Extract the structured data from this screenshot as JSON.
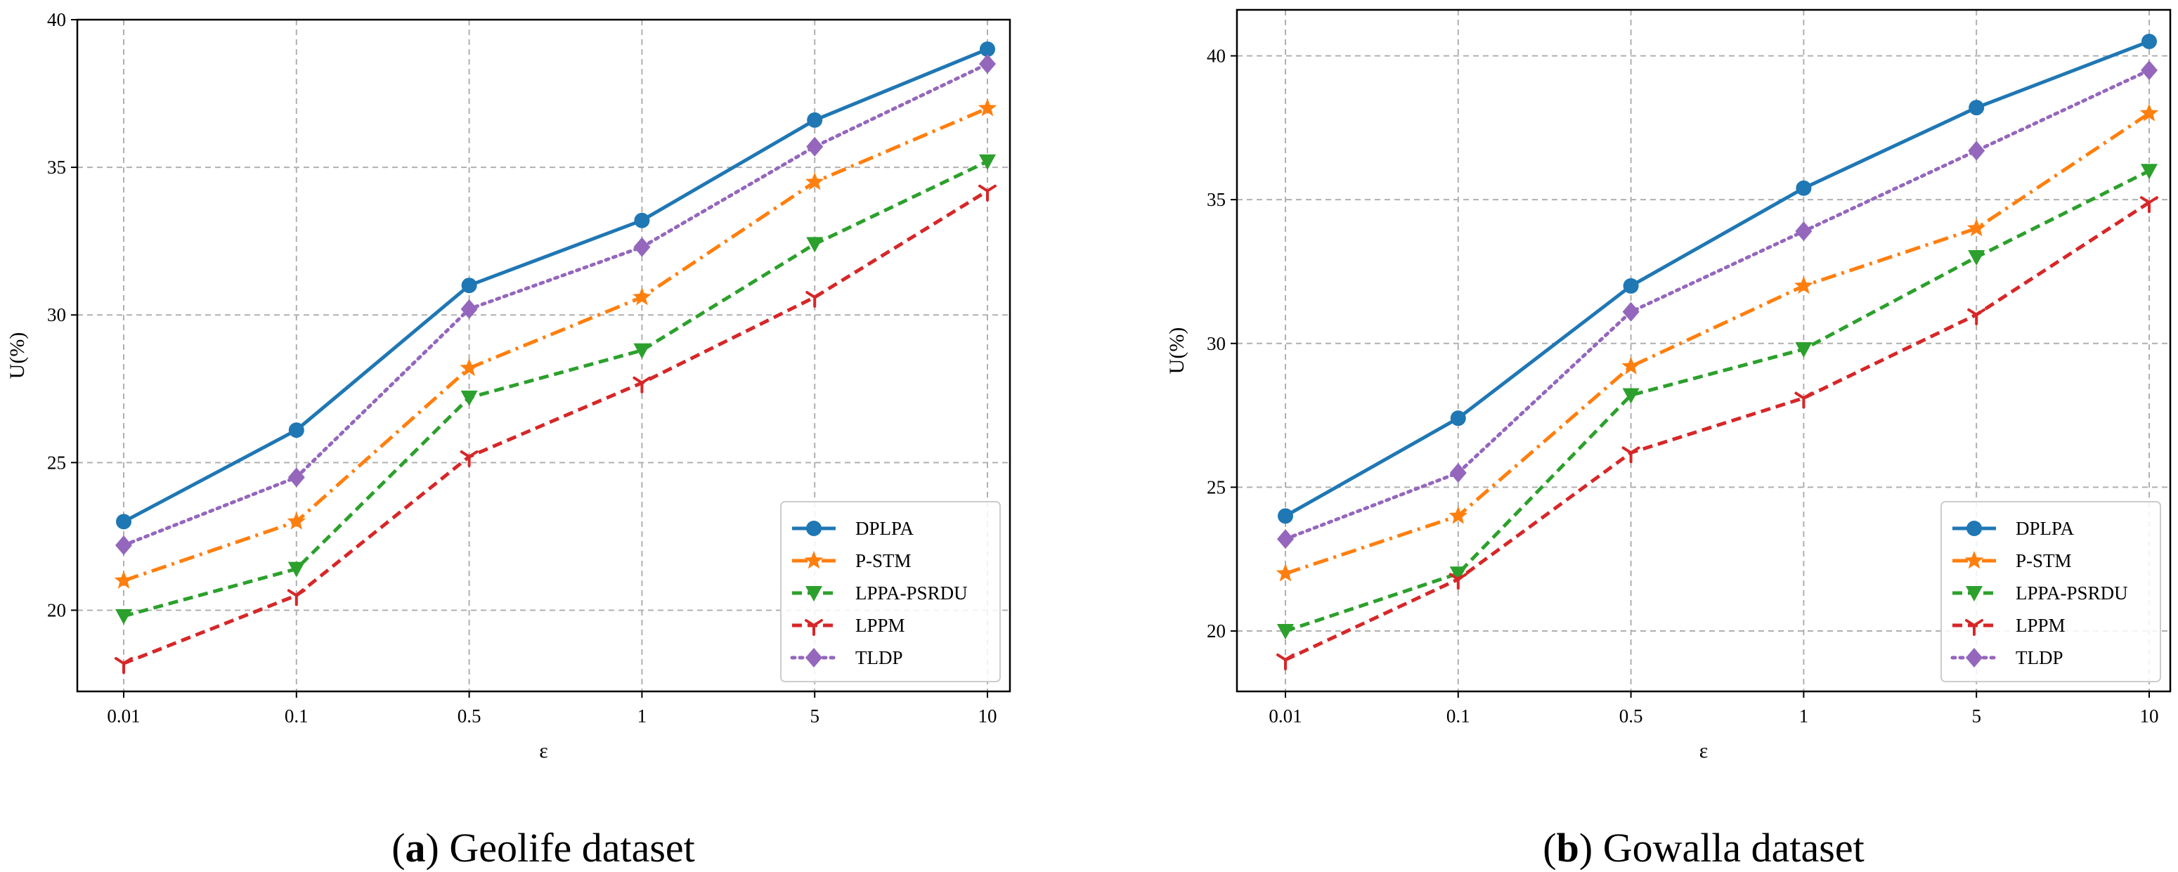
{
  "colors": {
    "DPLPA": "#1f77b4",
    "P-STM": "#ff7f0e",
    "LPPA-PSRDU": "#2ca02c",
    "LPPM": "#d62728",
    "TLDP": "#9467bd",
    "grid": "#b0b0b0"
  },
  "chart_data": [
    {
      "type": "line",
      "panel_letter": "a",
      "caption": "Geolife dataset",
      "xlabel": "ε",
      "ylabel": "U(%)",
      "categories": [
        "0.01",
        "0.1",
        "0.5",
        "1",
        "5",
        "10"
      ],
      "ylim": [
        17.25,
        40
      ],
      "yticks": [
        20,
        25,
        30,
        35,
        40
      ],
      "grid": true,
      "legend_position": "lower-right",
      "series": [
        {
          "name": "DPLPA",
          "style": "solid",
          "marker": "circle",
          "values": [
            23.0,
            26.1,
            31.0,
            33.2,
            36.6,
            39.0
          ]
        },
        {
          "name": "P-STM",
          "style": "dashdot",
          "marker": "star",
          "values": [
            21.0,
            23.0,
            28.2,
            30.6,
            34.5,
            37.0
          ]
        },
        {
          "name": "LPPA-PSRDU",
          "style": "dashed",
          "marker": "triangle-down",
          "values": [
            19.8,
            21.4,
            27.2,
            28.8,
            32.4,
            35.2
          ]
        },
        {
          "name": "LPPM",
          "style": "dashed",
          "marker": "tri-down",
          "values": [
            18.2,
            20.5,
            25.2,
            27.7,
            30.6,
            34.2
          ]
        },
        {
          "name": "TLDP",
          "style": "dotted",
          "marker": "diamond",
          "values": [
            22.2,
            24.5,
            30.2,
            32.3,
            35.7,
            38.5
          ]
        }
      ]
    },
    {
      "type": "line",
      "panel_letter": "b",
      "caption": "Gowalla dataset",
      "xlabel": "ε",
      "ylabel": "U(%)",
      "categories": [
        "0.01",
        "0.1",
        "0.5",
        "1",
        "5",
        "10"
      ],
      "ylim": [
        17.9,
        41.6
      ],
      "yticks": [
        20,
        25,
        30,
        35,
        40
      ],
      "grid": true,
      "legend_position": "lower-right",
      "series": [
        {
          "name": "DPLPA",
          "style": "solid",
          "marker": "circle",
          "values": [
            24.0,
            27.4,
            32.0,
            35.4,
            38.2,
            40.5
          ]
        },
        {
          "name": "P-STM",
          "style": "dashdot",
          "marker": "star",
          "values": [
            22.0,
            24.0,
            29.2,
            32.0,
            34.0,
            38.0
          ]
        },
        {
          "name": "LPPA-PSRDU",
          "style": "dashed",
          "marker": "triangle-down",
          "values": [
            20.0,
            22.0,
            28.2,
            29.8,
            33.0,
            36.0
          ]
        },
        {
          "name": "LPPM",
          "style": "dashed",
          "marker": "tri-down",
          "values": [
            19.0,
            21.8,
            26.2,
            28.1,
            31.0,
            34.9
          ]
        },
        {
          "name": "TLDP",
          "style": "dotted",
          "marker": "diamond",
          "values": [
            23.2,
            25.5,
            31.1,
            33.9,
            36.7,
            39.5
          ]
        }
      ]
    }
  ]
}
